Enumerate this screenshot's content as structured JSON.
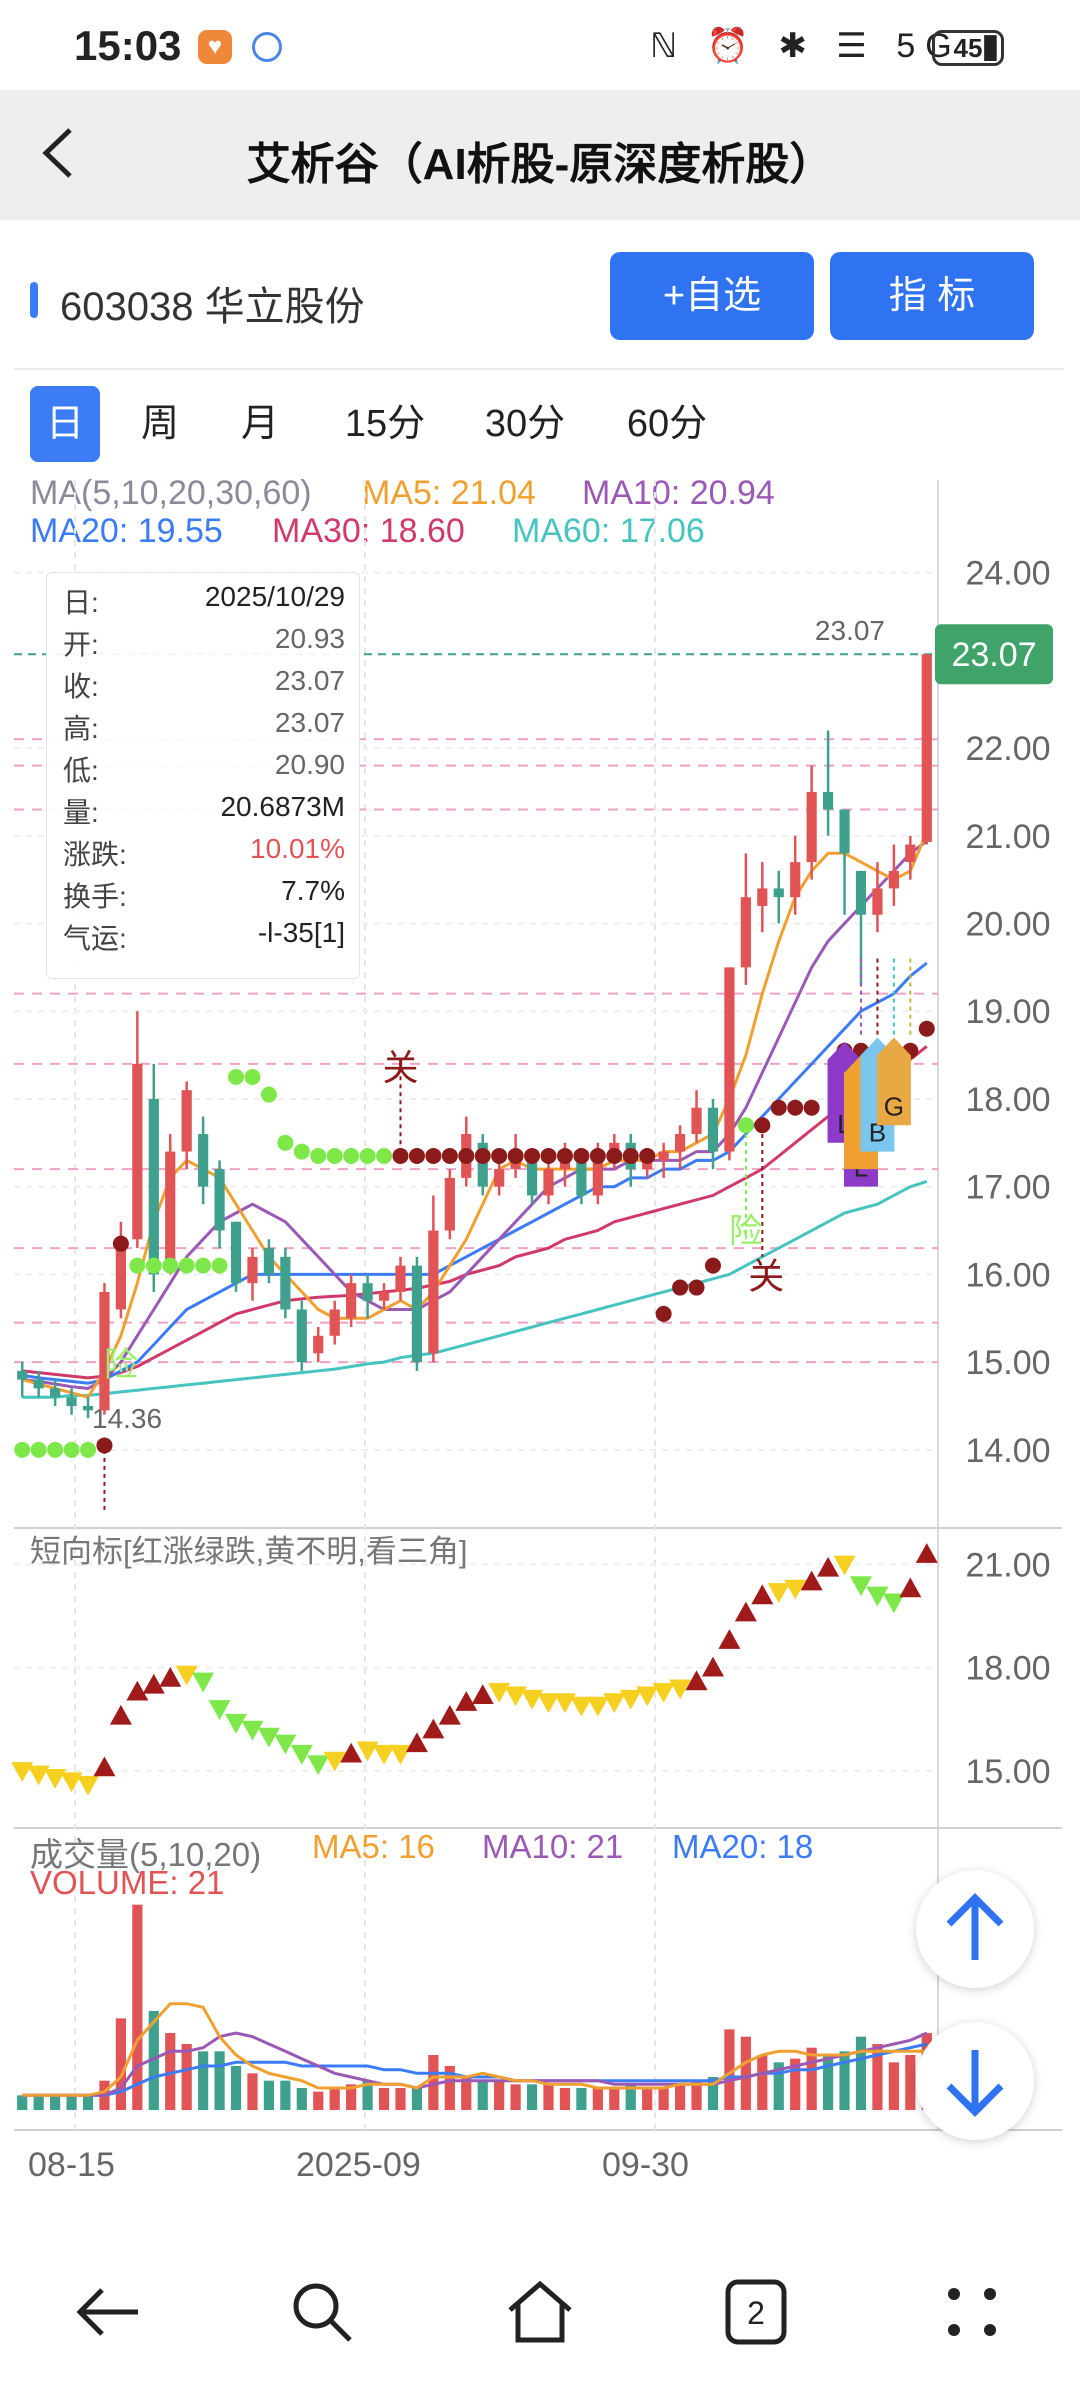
{
  "status_bar": {
    "time": "15:03",
    "battery": "45",
    "icons": "ℕ ⏰ ✱ ☰ 5G ▮"
  },
  "titlebar": {
    "back_icon": "chevron-left",
    "title": "艾析谷（AI析股-原深度析股）"
  },
  "stock": {
    "name": "603038 华立股份",
    "add_watch": "+自选",
    "indicator": "指  标"
  },
  "tabs": [
    "日",
    "周",
    "月",
    "15分",
    "30分",
    "60分"
  ],
  "ma_legend": {
    "header": "MA(5,10,20,30,60)",
    "ma5": "MA5: 21.04",
    "ma10": "MA10: 20.94",
    "ma20": "MA20: 19.55",
    "ma30": "MA30: 18.60",
    "ma60": "MA60: 17.06"
  },
  "info_box": {
    "rows": [
      {
        "k": "日:",
        "v": "2025/10/29"
      },
      {
        "k": "开:",
        "v": "20.93"
      },
      {
        "k": "收:",
        "v": "23.07"
      },
      {
        "k": "高:",
        "v": "23.07"
      },
      {
        "k": "低:",
        "v": "20.90"
      },
      {
        "k": "量:",
        "v": "20.6873M"
      },
      {
        "k": "涨跌:",
        "v": "10.01%"
      },
      {
        "k": "换手:",
        "v": "7.7%"
      },
      {
        "k": "气运:",
        "v": "-l-35[1]"
      }
    ]
  },
  "price_axis": [
    "24.00",
    "23.07",
    "22.00",
    "21.00",
    "20.00",
    "19.00",
    "18.00",
    "17.00",
    "16.00",
    "15.00",
    "14.00"
  ],
  "annotations": {
    "last_price": "23.07",
    "high_marker": "23.07",
    "low_marker": "14.36",
    "guan1": "关",
    "guan2": "关",
    "xian1": "险",
    "xian2": "险",
    "flag_l1": "L",
    "flag_l2": "L",
    "flag_b": "B",
    "flag_g": "G"
  },
  "short_panel": {
    "label": "短向标[红涨绿跌,黄不明,看三角]",
    "axis": [
      "21.00",
      "18.00",
      "15.00"
    ]
  },
  "volume_panel": {
    "header": "成交量(5,10,20)",
    "ma5": "MA5: 16",
    "ma10": "MA10: 21",
    "ma20": "MA20: 18",
    "volume": "VOLUME: 21"
  },
  "x_axis": [
    "08-15",
    "2025-09",
    "09-30"
  ],
  "colors": {
    "up": "#e05456",
    "down": "#3fa08e",
    "ma5": "#f0a030",
    "ma10": "#9b59b6",
    "ma20": "#3b7cf5",
    "ma30": "#d03a6a",
    "ma60": "#45c4c0",
    "accent": "#2f73f0"
  },
  "chart_data": {
    "type": "candlestick",
    "title": "603038 华立股份",
    "price_range": [
      13.2,
      24.6
    ],
    "candles": [
      [
        14.9,
        14.8,
        15.0,
        14.6
      ],
      [
        14.8,
        14.7,
        14.9,
        14.6
      ],
      [
        14.7,
        14.6,
        14.8,
        14.5
      ],
      [
        14.6,
        14.5,
        14.7,
        14.4
      ],
      [
        14.5,
        14.45,
        14.6,
        14.36
      ],
      [
        14.45,
        15.8,
        15.9,
        14.4
      ],
      [
        15.6,
        16.4,
        16.6,
        15.5
      ],
      [
        16.4,
        18.4,
        19.0,
        16.3
      ],
      [
        18.0,
        16.0,
        18.4,
        15.8
      ],
      [
        16.1,
        17.4,
        17.6,
        16.0
      ],
      [
        17.4,
        18.1,
        18.2,
        17.2
      ],
      [
        17.6,
        17.0,
        17.8,
        16.8
      ],
      [
        17.2,
        16.5,
        17.3,
        16.3
      ],
      [
        16.6,
        15.9,
        16.6,
        15.8
      ],
      [
        15.9,
        16.2,
        16.3,
        15.7
      ],
      [
        16.3,
        16.0,
        16.4,
        15.9
      ],
      [
        16.2,
        15.6,
        16.3,
        15.5
      ],
      [
        15.6,
        15.0,
        15.7,
        14.9
      ],
      [
        15.1,
        15.3,
        15.4,
        15.0
      ],
      [
        15.3,
        15.6,
        15.7,
        15.2
      ],
      [
        15.5,
        15.9,
        16.0,
        15.4
      ],
      [
        15.9,
        15.7,
        16.0,
        15.5
      ],
      [
        15.7,
        15.8,
        15.9,
        15.6
      ],
      [
        15.8,
        16.1,
        16.2,
        15.7
      ],
      [
        16.1,
        15.0,
        16.2,
        14.9
      ],
      [
        15.1,
        16.5,
        16.9,
        15.0
      ],
      [
        16.5,
        17.1,
        17.2,
        16.4
      ],
      [
        17.1,
        17.6,
        17.8,
        17.0
      ],
      [
        17.5,
        17.0,
        17.6,
        16.9
      ],
      [
        17.0,
        17.2,
        17.4,
        16.9
      ],
      [
        17.2,
        17.3,
        17.6,
        17.1
      ],
      [
        17.3,
        16.9,
        17.4,
        16.8
      ],
      [
        16.9,
        17.2,
        17.3,
        16.8
      ],
      [
        17.2,
        17.3,
        17.5,
        17.0
      ],
      [
        17.3,
        16.9,
        17.4,
        16.8
      ],
      [
        16.9,
        17.3,
        17.5,
        16.8
      ],
      [
        17.3,
        17.5,
        17.6,
        17.2
      ],
      [
        17.5,
        17.2,
        17.6,
        17.0
      ],
      [
        17.2,
        17.3,
        17.4,
        17.1
      ],
      [
        17.3,
        17.4,
        17.5,
        17.1
      ],
      [
        17.4,
        17.6,
        17.7,
        17.2
      ],
      [
        17.6,
        17.9,
        18.1,
        17.5
      ],
      [
        17.9,
        17.4,
        18.0,
        17.2
      ],
      [
        17.4,
        19.5,
        19.5,
        17.3
      ],
      [
        19.5,
        20.3,
        20.8,
        19.3
      ],
      [
        20.2,
        20.4,
        20.7,
        19.9
      ],
      [
        20.4,
        20.3,
        20.6,
        20.0
      ],
      [
        20.3,
        20.7,
        21.0,
        20.1
      ],
      [
        20.7,
        21.5,
        21.8,
        20.5
      ],
      [
        21.5,
        21.3,
        22.2,
        21.0
      ],
      [
        21.3,
        20.8,
        21.3,
        20.1
      ],
      [
        20.6,
        20.1,
        20.6,
        19.3
      ],
      [
        20.1,
        20.4,
        20.7,
        19.9
      ],
      [
        20.4,
        20.6,
        20.9,
        20.2
      ],
      [
        20.7,
        20.9,
        21.0,
        20.5
      ],
      [
        20.93,
        23.07,
        23.07,
        20.9
      ]
    ],
    "ma5": [
      14.8,
      14.75,
      14.7,
      14.65,
      14.6,
      14.9,
      15.3,
      15.9,
      16.6,
      17.1,
      17.3,
      17.2,
      17.1,
      16.8,
      16.5,
      16.2,
      16.0,
      15.8,
      15.6,
      15.5,
      15.5,
      15.5,
      15.6,
      15.7,
      15.6,
      15.8,
      16.1,
      16.4,
      16.8,
      17.2,
      17.3,
      17.2,
      17.2,
      17.2,
      17.2,
      17.2,
      17.3,
      17.3,
      17.3,
      17.4,
      17.4,
      17.5,
      17.6,
      18.0,
      18.5,
      19.2,
      19.8,
      20.3,
      20.6,
      20.8,
      20.8,
      20.7,
      20.6,
      20.5,
      20.6,
      21.04
    ],
    "ma10": [
      14.8,
      14.78,
      14.75,
      14.72,
      14.7,
      14.8,
      15.0,
      15.3,
      15.6,
      15.9,
      16.2,
      16.4,
      16.6,
      16.7,
      16.8,
      16.7,
      16.6,
      16.4,
      16.2,
      16.0,
      15.8,
      15.7,
      15.6,
      15.6,
      15.6,
      15.7,
      15.8,
      16.0,
      16.2,
      16.4,
      16.6,
      16.8,
      17.0,
      17.1,
      17.2,
      17.2,
      17.2,
      17.3,
      17.3,
      17.3,
      17.3,
      17.4,
      17.4,
      17.6,
      17.9,
      18.3,
      18.7,
      19.1,
      19.5,
      19.8,
      20.0,
      20.2,
      20.4,
      20.6,
      20.8,
      20.94
    ],
    "ma20": [
      14.85,
      14.82,
      14.8,
      14.78,
      14.76,
      14.8,
      14.9,
      15.0,
      15.2,
      15.4,
      15.6,
      15.7,
      15.8,
      15.9,
      16.0,
      16.0,
      16.0,
      16.0,
      16.0,
      16.0,
      16.0,
      16.0,
      16.0,
      16.0,
      16.0,
      16.0,
      16.1,
      16.2,
      16.3,
      16.4,
      16.5,
      16.6,
      16.7,
      16.8,
      16.9,
      17.0,
      17.0,
      17.1,
      17.1,
      17.2,
      17.2,
      17.3,
      17.3,
      17.4,
      17.6,
      17.8,
      18.0,
      18.2,
      18.4,
      18.6,
      18.8,
      19.0,
      19.1,
      19.2,
      19.4,
      19.55
    ],
    "ma30": [
      14.9,
      14.88,
      14.86,
      14.84,
      14.82,
      14.84,
      14.88,
      14.95,
      15.05,
      15.15,
      15.25,
      15.35,
      15.45,
      15.55,
      15.6,
      15.65,
      15.7,
      15.72,
      15.74,
      15.75,
      15.76,
      15.78,
      15.8,
      15.82,
      15.84,
      15.88,
      15.92,
      16.0,
      16.05,
      16.1,
      16.2,
      16.25,
      16.3,
      16.4,
      16.45,
      16.5,
      16.6,
      16.65,
      16.7,
      16.75,
      16.8,
      16.85,
      16.9,
      17.0,
      17.1,
      17.2,
      17.35,
      17.5,
      17.65,
      17.8,
      17.95,
      18.1,
      18.2,
      18.3,
      18.45,
      18.6
    ],
    "ma60": [
      14.6,
      14.6,
      14.6,
      14.62,
      14.62,
      14.64,
      14.66,
      14.68,
      14.7,
      14.72,
      14.74,
      14.76,
      14.78,
      14.8,
      14.82,
      14.84,
      14.86,
      14.88,
      14.9,
      14.92,
      14.95,
      14.98,
      15.0,
      15.05,
      15.08,
      15.1,
      15.15,
      15.2,
      15.25,
      15.3,
      15.35,
      15.4,
      15.45,
      15.5,
      15.55,
      15.6,
      15.65,
      15.7,
      15.75,
      15.8,
      15.85,
      15.9,
      15.95,
      16.0,
      16.1,
      16.2,
      16.3,
      16.4,
      16.5,
      16.6,
      16.7,
      16.75,
      16.8,
      16.9,
      17.0,
      17.06
    ],
    "short_signal": [
      15.0,
      14.9,
      14.8,
      14.7,
      14.6,
      15.1,
      16.6,
      17.3,
      17.5,
      17.7,
      17.8,
      17.6,
      16.8,
      16.4,
      16.2,
      16.0,
      15.8,
      15.5,
      15.2,
      15.3,
      15.5,
      15.6,
      15.5,
      15.5,
      15.8,
      16.2,
      16.6,
      17.0,
      17.2,
      17.3,
      17.2,
      17.1,
      17.0,
      17.0,
      16.9,
      16.9,
      17.0,
      17.1,
      17.2,
      17.3,
      17.4,
      17.6,
      18.0,
      18.8,
      19.6,
      20.1,
      20.2,
      20.3,
      20.5,
      20.9,
      21.0,
      20.4,
      20.1,
      19.9,
      20.3,
      21.3
    ],
    "volume": [
      4,
      4,
      4,
      4,
      4,
      8,
      25,
      56,
      27,
      21,
      18,
      16,
      16,
      12,
      10,
      8,
      8,
      6,
      5,
      6,
      7,
      8,
      6,
      6,
      6,
      15,
      12,
      9,
      8,
      8,
      7,
      7,
      7,
      6,
      6,
      6,
      6,
      7,
      6,
      6,
      7,
      8,
      9,
      22,
      20,
      15,
      13,
      14,
      17,
      15,
      16,
      20,
      18,
      13,
      15,
      21
    ],
    "vol_ma5": [
      4,
      4,
      4,
      4,
      4,
      5,
      9,
      19,
      24,
      29,
      29,
      28,
      20,
      15,
      12,
      10,
      9,
      8,
      6,
      6,
      6,
      7,
      7,
      7,
      6,
      9,
      9,
      9,
      10,
      9,
      8,
      8,
      7,
      7,
      7,
      6,
      6,
      6,
      6,
      6,
      7,
      7,
      7,
      10,
      13,
      15,
      16,
      16,
      15,
      15,
      15,
      16,
      16,
      16,
      16,
      16
    ],
    "vol_ma10": [
      4,
      4,
      4,
      4,
      4,
      4,
      6,
      12,
      14,
      16,
      16,
      17,
      20,
      21,
      20,
      18,
      16,
      14,
      12,
      10,
      9,
      8,
      7,
      7,
      6,
      7,
      8,
      8,
      8,
      8,
      8,
      8,
      8,
      8,
      8,
      8,
      7,
      7,
      7,
      7,
      7,
      7,
      7,
      8,
      9,
      10,
      11,
      12,
      13,
      14,
      15,
      16,
      17,
      18,
      19,
      21
    ],
    "vol_ma20": [
      4,
      4,
      4,
      4,
      4,
      4,
      5,
      7,
      9,
      10,
      11,
      12,
      12,
      13,
      13,
      13,
      13,
      12,
      12,
      12,
      12,
      12,
      11,
      11,
      10,
      10,
      10,
      9,
      9,
      9,
      8,
      8,
      8,
      8,
      8,
      8,
      8,
      8,
      8,
      8,
      8,
      8,
      8,
      9,
      9,
      10,
      10,
      11,
      11,
      12,
      13,
      14,
      15,
      16,
      17,
      18
    ],
    "x_labels": [
      "08-15",
      "2025-09",
      "09-30"
    ],
    "volume_range": [
      0,
      60
    ]
  }
}
